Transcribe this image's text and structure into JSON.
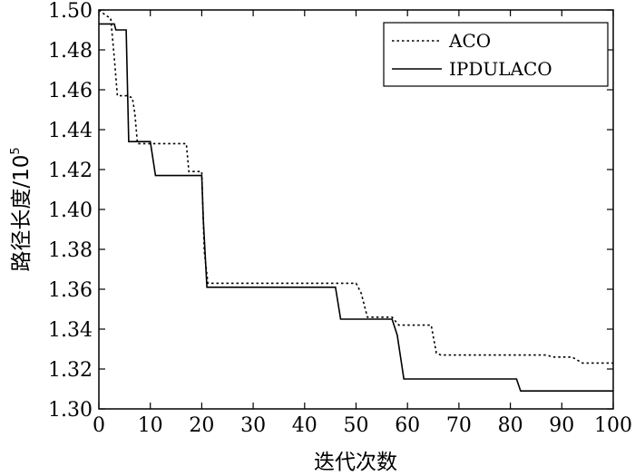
{
  "chart_data": {
    "type": "line",
    "xlabel": "迭代次数",
    "ylabel_main": "路径长度/10",
    "ylabel_exp": "5",
    "xlim": [
      0,
      100
    ],
    "ylim": [
      1.3,
      1.5
    ],
    "x_ticks": [
      0,
      10,
      20,
      30,
      40,
      50,
      60,
      70,
      80,
      90,
      100
    ],
    "y_ticks": [
      1.3,
      1.32,
      1.34,
      1.36,
      1.38,
      1.4,
      1.42,
      1.44,
      1.46,
      1.48,
      1.5
    ],
    "x_tick_labels": [
      "0",
      "10",
      "20",
      "30",
      "40",
      "50",
      "60",
      "70",
      "80",
      "90",
      "100"
    ],
    "y_tick_labels": [
      "1.30",
      "1.32",
      "1.34",
      "1.36",
      "1.38",
      "1.40",
      "1.42",
      "1.44",
      "1.46",
      "1.48",
      "1.50"
    ],
    "grid": false,
    "legend_position": "top-right",
    "series": [
      {
        "name": "ACO",
        "style": "dotted",
        "color": "#000000",
        "points": [
          [
            0,
            1.5
          ],
          [
            1.5,
            1.497
          ],
          [
            2.3,
            1.496
          ],
          [
            3,
            1.476
          ],
          [
            3.6,
            1.457
          ],
          [
            5.4,
            1.457
          ],
          [
            6.5,
            1.456
          ],
          [
            7,
            1.448
          ],
          [
            7.5,
            1.433
          ],
          [
            17,
            1.433
          ],
          [
            17.5,
            1.419
          ],
          [
            20,
            1.419
          ],
          [
            20.5,
            1.379
          ],
          [
            21.2,
            1.363
          ],
          [
            50,
            1.363
          ],
          [
            51,
            1.358
          ],
          [
            52.2,
            1.346
          ],
          [
            57,
            1.346
          ],
          [
            58.3,
            1.342
          ],
          [
            63.5,
            1.342
          ],
          [
            64.6,
            1.342
          ],
          [
            65.6,
            1.328
          ],
          [
            66.5,
            1.327
          ],
          [
            87,
            1.327
          ],
          [
            88.3,
            1.326
          ],
          [
            92,
            1.326
          ],
          [
            94,
            1.323
          ],
          [
            100,
            1.323
          ]
        ]
      },
      {
        "name": "IPDULACO",
        "style": "solid",
        "color": "#000000",
        "points": [
          [
            0,
            1.493
          ],
          [
            3,
            1.493
          ],
          [
            3.3,
            1.49
          ],
          [
            5.3,
            1.49
          ],
          [
            5.8,
            1.434
          ],
          [
            10,
            1.434
          ],
          [
            11,
            1.417
          ],
          [
            20,
            1.417
          ],
          [
            20.3,
            1.395
          ],
          [
            21,
            1.361
          ],
          [
            46,
            1.361
          ],
          [
            47,
            1.345
          ],
          [
            57,
            1.345
          ],
          [
            58,
            1.337
          ],
          [
            59.3,
            1.315
          ],
          [
            81.2,
            1.315
          ],
          [
            82,
            1.309
          ],
          [
            100,
            1.309
          ]
        ]
      }
    ]
  }
}
